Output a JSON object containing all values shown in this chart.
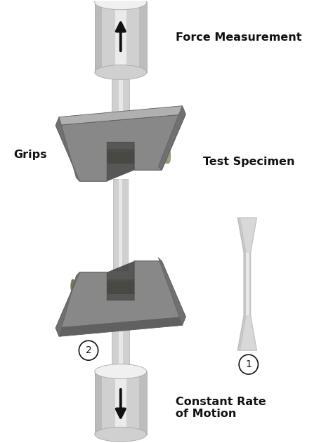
{
  "bg_color": "#ffffff",
  "fig_width": 4.74,
  "fig_height": 6.31,
  "dpi": 100,
  "labels": {
    "force_measurement": "Force Measurement",
    "test_specimen": "Test Specimen",
    "grips": "Grips",
    "constant_rate": "Constant Rate\nof Motion",
    "num1": "1",
    "num2": "2"
  },
  "colors": {
    "cylinder_light": "#f0f0f0",
    "cylinder_mid": "#d0d0d0",
    "cylinder_dark": "#a8a8a8",
    "grip_top": "#b0b0b0",
    "grip_mid": "#888888",
    "grip_dark": "#606060",
    "grip_side": "#707070",
    "pin_light": "#c8c8a8",
    "pin_mid": "#a0a080",
    "pin_dark": "#787858",
    "rod_light": "#efefef",
    "rod_mid": "#d0d0d0",
    "rod_dark": "#b0b0b0",
    "arrow_color": "#111111",
    "text_color": "#111111",
    "specimen_light": "#f0f0f0",
    "specimen_mid": "#d8d8d8",
    "specimen_dark": "#b8b8b8",
    "circle_stroke": "#333333",
    "gap_dark": "#3a3a3a"
  }
}
